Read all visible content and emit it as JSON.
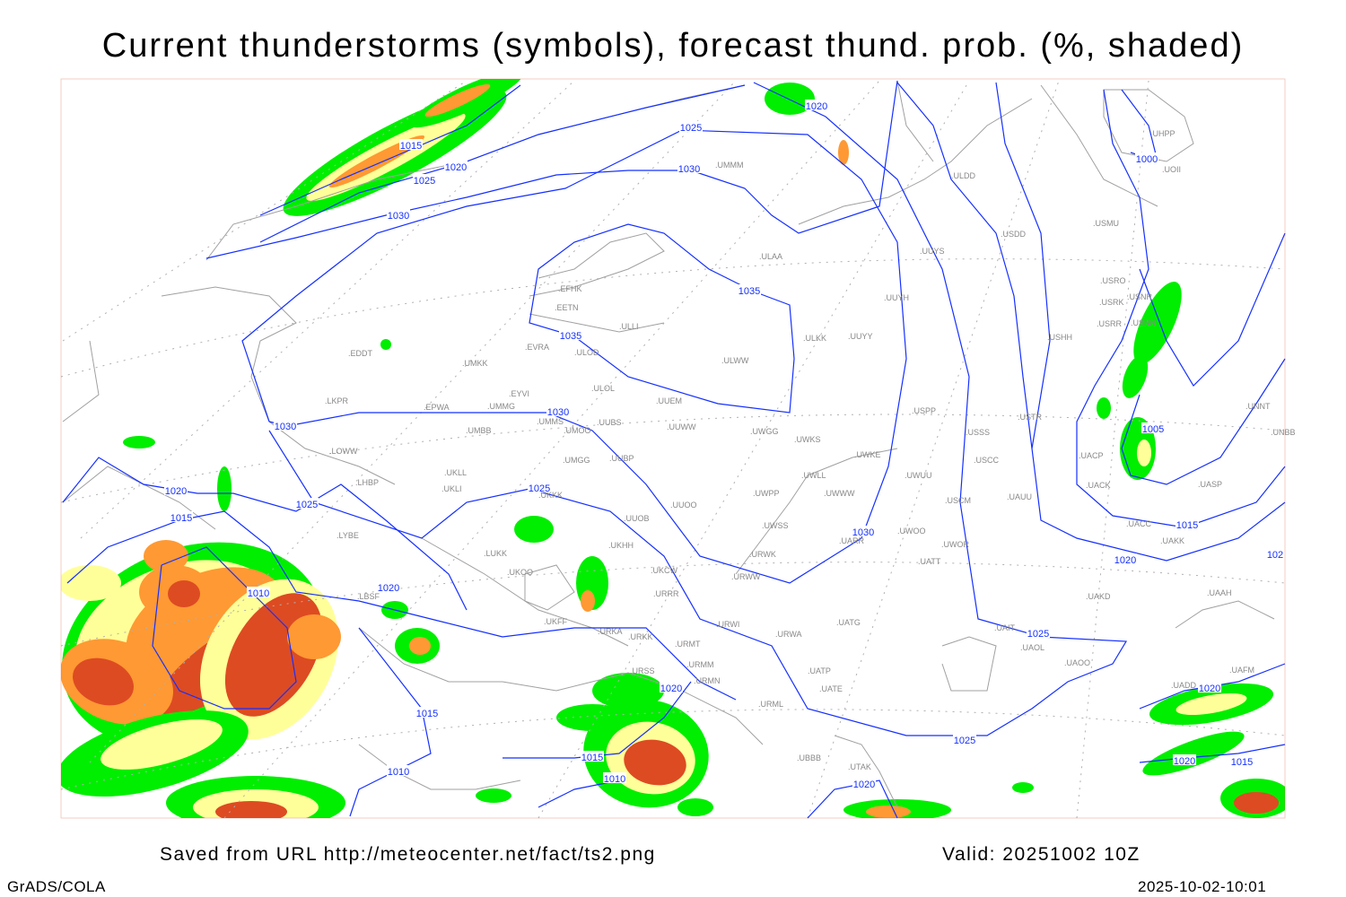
{
  "title": "Current thunderstorms (symbols), forecast thund. prob. (%, shaded)",
  "footer": {
    "saved": "Saved from URL http://meteocenter.net/fact/ts2.png",
    "valid": "Valid: 20251002 10Z",
    "software": "GrADS/COLA",
    "timestamp": "2025-10-02-10:01"
  },
  "colors": {
    "prob_low": "#00ee00",
    "prob_mid": "#ffff99",
    "prob_high": "#ff9933",
    "prob_max": "#dd4b22",
    "isobars": "#1530ff",
    "coastlines": "#a0a0a0"
  },
  "isobar_labels": [
    "1020",
    "1025",
    "1015",
    "1030",
    "1020",
    "1025",
    "1000",
    "1030",
    "1035",
    "1035",
    "1030",
    "1030",
    "1005",
    "1020",
    "1025",
    "1025",
    "1015",
    "1015",
    "1030",
    "1020",
    "1020",
    "1010",
    "1025",
    "1020",
    "1020",
    "1015",
    "1025",
    "1015",
    "1020",
    "1015",
    "1010",
    "1010",
    "1020",
    "102"
  ],
  "stations": [
    "ULDD",
    "USMU",
    "USDD",
    "UUYS",
    "ULAA",
    "USRO",
    "USNR",
    "USRK",
    "UUYH",
    "USRR",
    "USNN",
    "USHH",
    "ULKK",
    "UUYY",
    "EFHK",
    "EETN",
    "ULLI",
    "EVRA",
    "ULOD",
    "UMKK",
    "ULWW",
    "EDDT",
    "EYVI",
    "ULOL",
    "UUEM",
    "LKPR",
    "EPWA",
    "UMMG",
    "USPP",
    "USTR",
    "UMMS",
    "UMOO",
    "UUBS",
    "UMBB",
    "UUWW",
    "UWGG",
    "UWKS",
    "USSS",
    "UNNT",
    "UNBB",
    "LOWW",
    "UWKE",
    "UACP",
    "UMGG",
    "UUBP",
    "USCC",
    "UKLL",
    "UWUU",
    "UWLL",
    "UACK",
    "UASP",
    "LHBP",
    "UKLI",
    "UKKK",
    "UWPP",
    "UWWW",
    "USCM",
    "UAUU",
    "UUOO",
    "UUOB",
    "UACC",
    "LYBE",
    "UWSS",
    "UWOO",
    "UARR",
    "UAKK",
    "UWOR",
    "LUKK",
    "URWK",
    "UATT",
    "UKOO",
    "UKCW",
    "UKHH",
    "URWW",
    "LBSF",
    "URRR",
    "UAKD",
    "UAAH",
    "UKFF",
    "UATG",
    "URWI",
    "UAIT",
    "URKA",
    "URKK",
    "URWA",
    "UAOL",
    "UAOO",
    "URMT",
    "URSS",
    "URMM",
    "UATP",
    "UAFM",
    "URMN",
    "UATE",
    "UADD",
    "URML",
    "UTAK",
    "UBBB",
    "UOII",
    "UHPP",
    "UMMM"
  ]
}
